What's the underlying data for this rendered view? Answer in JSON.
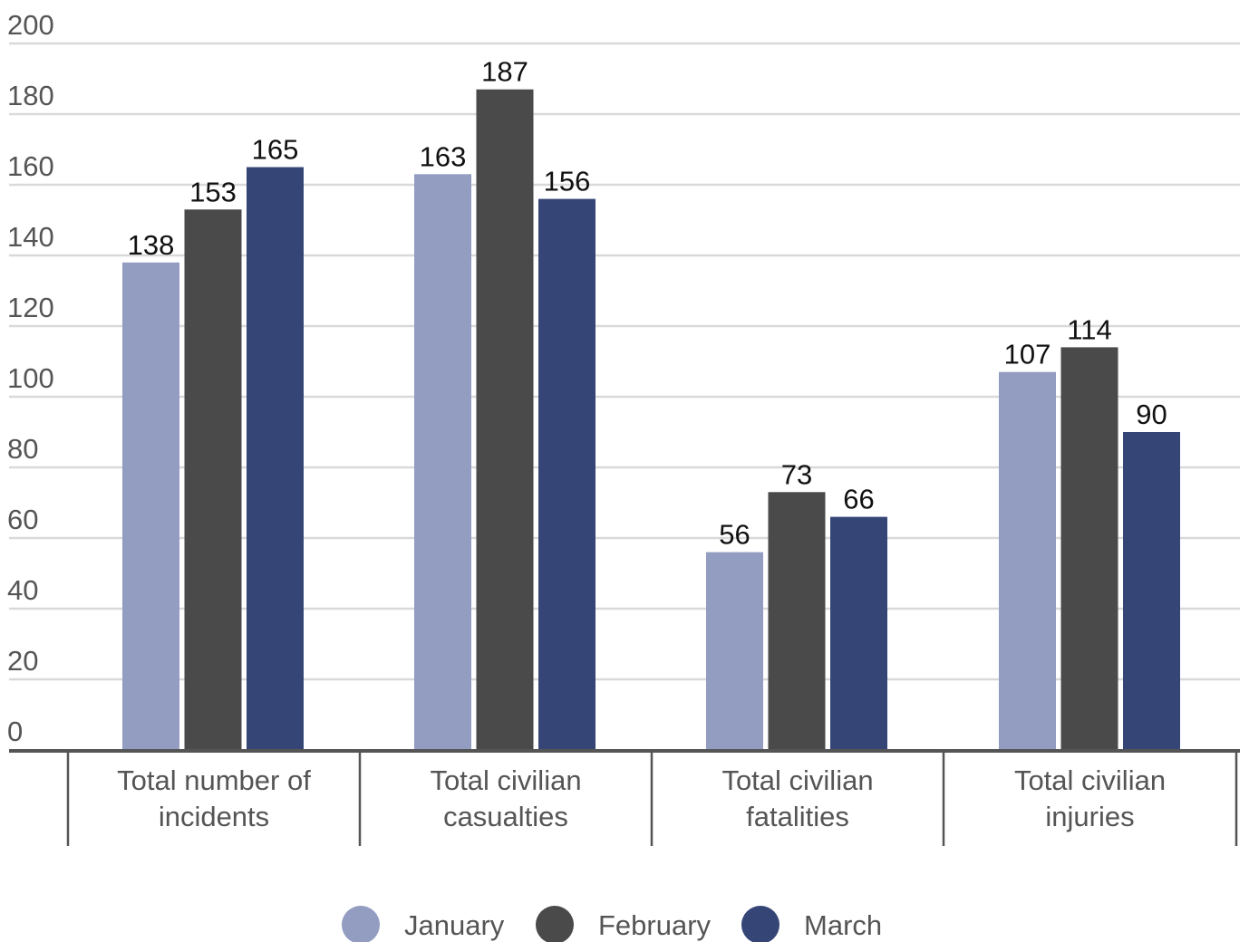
{
  "chart_data": {
    "type": "bar",
    "categories": [
      [
        "Total number of",
        "incidents"
      ],
      [
        "Total civilian",
        "casualties"
      ],
      [
        "Total civilian",
        "fatalities"
      ],
      [
        "Total civilian",
        "injuries"
      ]
    ],
    "series": [
      {
        "name": "January",
        "values": [
          138,
          163,
          56,
          107
        ],
        "color": "#939cc1"
      },
      {
        "name": "February",
        "values": [
          153,
          187,
          73,
          114
        ],
        "color": "#4a4a4a"
      },
      {
        "name": "March",
        "values": [
          165,
          156,
          66,
          90
        ],
        "color": "#354576"
      }
    ],
    "ylim": [
      0,
      200
    ],
    "yticks": [
      0,
      20,
      40,
      60,
      80,
      100,
      120,
      140,
      160,
      180,
      200
    ],
    "grid": true,
    "legend": "bottom-center",
    "colors": {
      "grid": "#d9d9d9",
      "axis": "#555555"
    }
  }
}
